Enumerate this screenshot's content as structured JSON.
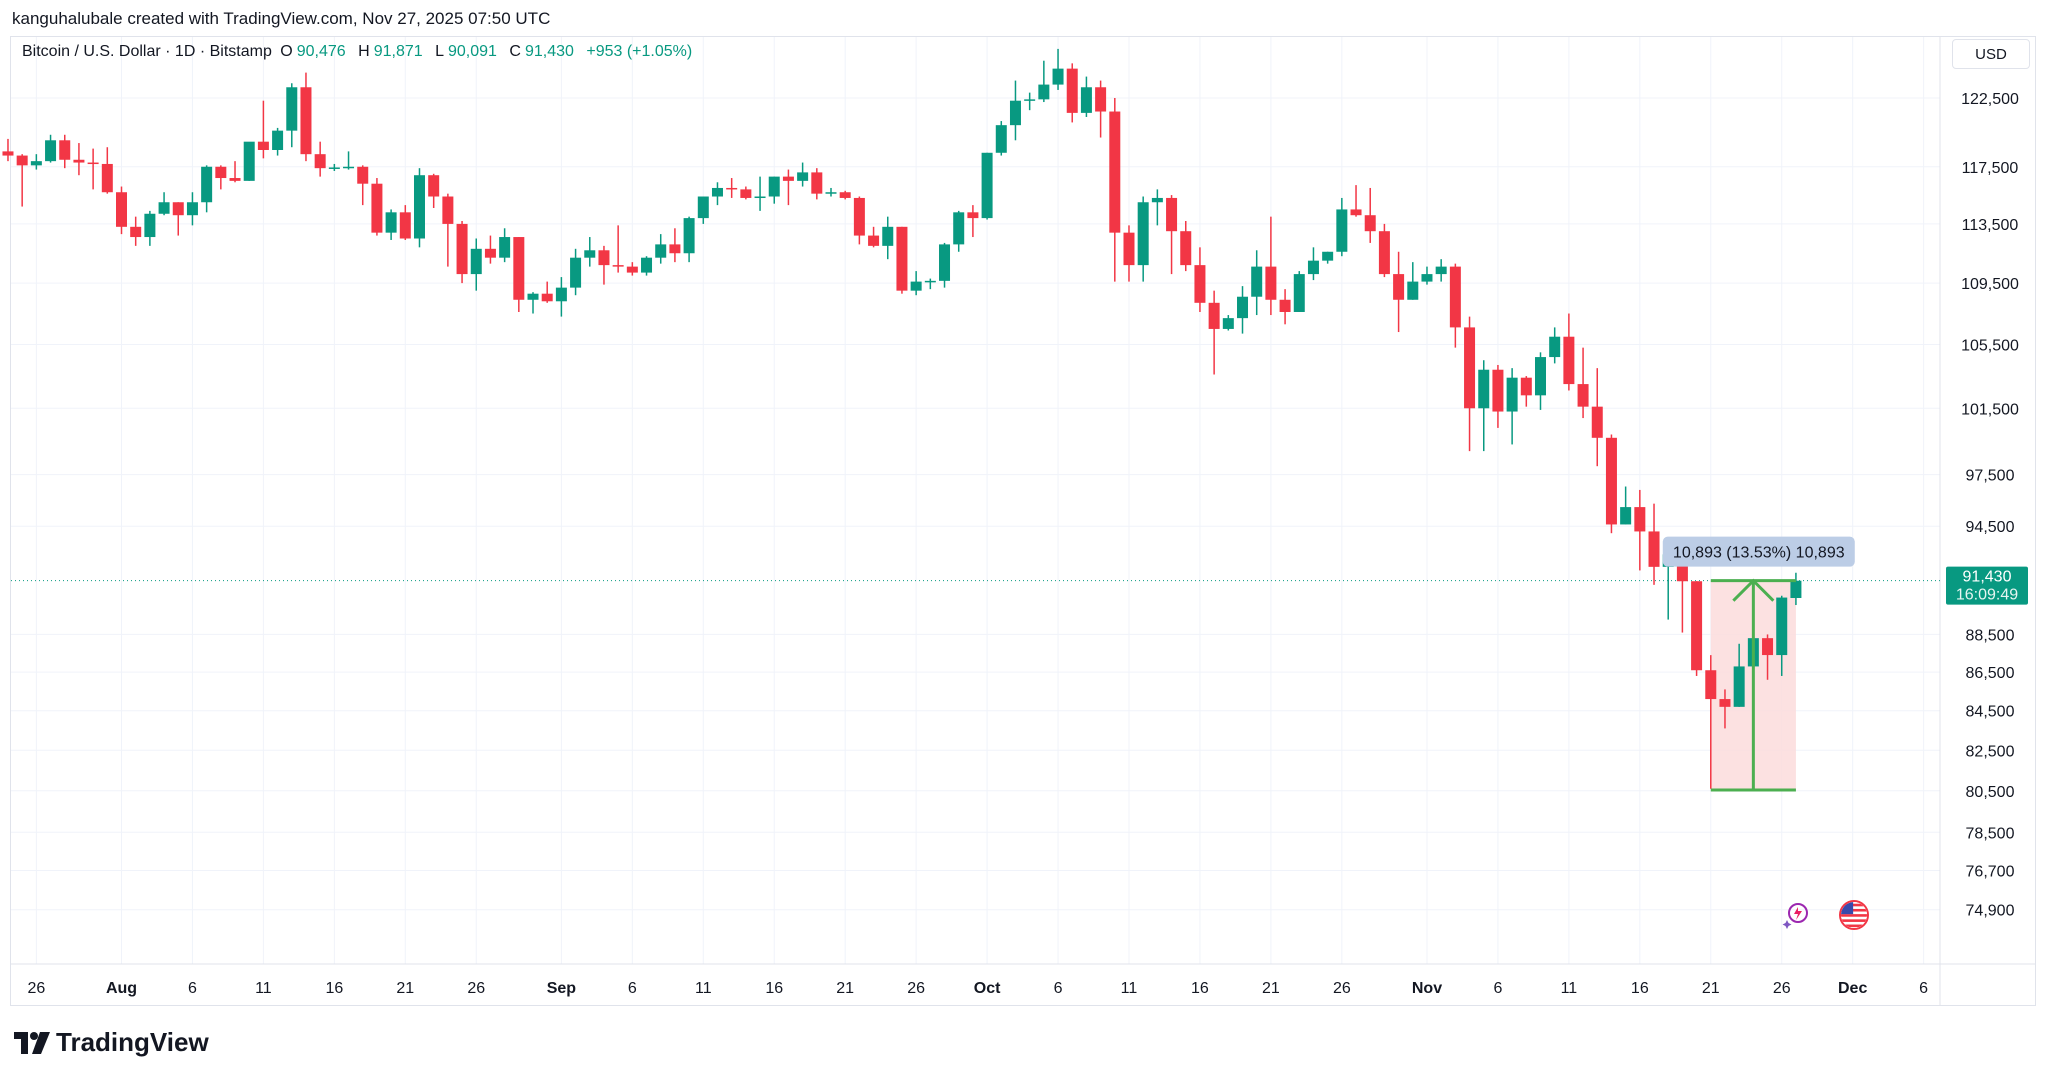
{
  "attribution": "kanguhalubale created with TradingView.com, Nov 27, 2025 07:50 UTC",
  "legend": {
    "symbol": "Bitcoin / U.S. Dollar · 1D · Bitstamp",
    "o_label": "O",
    "o": "90,476",
    "h_label": "H",
    "h": "91,871",
    "l_label": "L",
    "l": "90,091",
    "c_label": "C",
    "c": "91,430",
    "change": "+953 (+1.05%)"
  },
  "currency": "USD",
  "logo": "TradingView",
  "icons": {
    "assistant": "sparkle-icon",
    "region": "us-flag-icon"
  },
  "colors": {
    "up": "#089981",
    "down": "#f23645",
    "measure_fill": "#fbdcdc",
    "measure_line": "#4caf50",
    "measure_label_bg": "#bccde6"
  },
  "chart_data": {
    "type": "candlestick",
    "title": "Bitcoin / U.S. Dollar · 1D · Bitstamp",
    "y_scale": "log",
    "ylim": [
      73800,
      127500
    ],
    "grid": true,
    "price_ticks": [
      "122,500",
      "117,500",
      "113,500",
      "109,500",
      "105,500",
      "101,500",
      "97,500",
      "94,500",
      "88,500",
      "86,500",
      "84,500",
      "82,500",
      "80,500",
      "78,500",
      "76,700",
      "74,900"
    ],
    "time_ticks": [
      {
        "label": "26",
        "date": "2025-07-26",
        "bold": false
      },
      {
        "label": "Aug",
        "date": "2025-08-01",
        "bold": true
      },
      {
        "label": "6",
        "date": "2025-08-06",
        "bold": false
      },
      {
        "label": "11",
        "date": "2025-08-11",
        "bold": false
      },
      {
        "label": "16",
        "date": "2025-08-16",
        "bold": false
      },
      {
        "label": "21",
        "date": "2025-08-21",
        "bold": false
      },
      {
        "label": "26",
        "date": "2025-08-26",
        "bold": false
      },
      {
        "label": "Sep",
        "date": "2025-09-01",
        "bold": true
      },
      {
        "label": "6",
        "date": "2025-09-06",
        "bold": false
      },
      {
        "label": "11",
        "date": "2025-09-11",
        "bold": false
      },
      {
        "label": "16",
        "date": "2025-09-16",
        "bold": false
      },
      {
        "label": "21",
        "date": "2025-09-21",
        "bold": false
      },
      {
        "label": "26",
        "date": "2025-09-26",
        "bold": false
      },
      {
        "label": "Oct",
        "date": "2025-10-01",
        "bold": true
      },
      {
        "label": "6",
        "date": "2025-10-06",
        "bold": false
      },
      {
        "label": "11",
        "date": "2025-10-11",
        "bold": false
      },
      {
        "label": "16",
        "date": "2025-10-16",
        "bold": false
      },
      {
        "label": "21",
        "date": "2025-10-21",
        "bold": false
      },
      {
        "label": "26",
        "date": "2025-10-26",
        "bold": false
      },
      {
        "label": "Nov",
        "date": "2025-11-01",
        "bold": true
      },
      {
        "label": "6",
        "date": "2025-11-06",
        "bold": false
      },
      {
        "label": "11",
        "date": "2025-11-11",
        "bold": false
      },
      {
        "label": "16",
        "date": "2025-11-16",
        "bold": false
      },
      {
        "label": "21",
        "date": "2025-11-21",
        "bold": false
      },
      {
        "label": "26",
        "date": "2025-11-26",
        "bold": false
      },
      {
        "label": "Dec",
        "date": "2025-12-01",
        "bold": true
      },
      {
        "label": "6",
        "date": "2025-12-06",
        "bold": false
      }
    ],
    "candles_format": [
      "date",
      "open",
      "high",
      "low",
      "close"
    ],
    "candles": [
      [
        "2025-07-24",
        118600,
        119500,
        117900,
        118300
      ],
      [
        "2025-07-25",
        118300,
        118400,
        114700,
        117600
      ],
      [
        "2025-07-26",
        117600,
        118400,
        117300,
        117900
      ],
      [
        "2025-07-27",
        117900,
        119800,
        117800,
        119400
      ],
      [
        "2025-07-28",
        119400,
        119800,
        117400,
        118000
      ],
      [
        "2025-07-29",
        118000,
        119200,
        116900,
        117800
      ],
      [
        "2025-07-30",
        117800,
        118800,
        115900,
        117700
      ],
      [
        "2025-07-31",
        117700,
        118900,
        115600,
        115700
      ],
      [
        "2025-08-01",
        115700,
        116100,
        112800,
        113300
      ],
      [
        "2025-08-02",
        113300,
        114000,
        112000,
        112600
      ],
      [
        "2025-08-03",
        112600,
        114400,
        112000,
        114200
      ],
      [
        "2025-08-04",
        114200,
        115700,
        114100,
        115000
      ],
      [
        "2025-08-05",
        115000,
        115000,
        112700,
        114100
      ],
      [
        "2025-08-06",
        114100,
        115700,
        113400,
        115000
      ],
      [
        "2025-08-07",
        115000,
        117600,
        114300,
        117500
      ],
      [
        "2025-08-08",
        117500,
        117600,
        115900,
        116700
      ],
      [
        "2025-08-09",
        116700,
        117900,
        116400,
        116500
      ],
      [
        "2025-08-10",
        116500,
        119200,
        116500,
        119300
      ],
      [
        "2025-08-11",
        119300,
        122300,
        118100,
        118700
      ],
      [
        "2025-08-12",
        118700,
        120300,
        118300,
        120100
      ],
      [
        "2025-08-13",
        120100,
        123600,
        118900,
        123300
      ],
      [
        "2025-08-14",
        123300,
        124400,
        117900,
        118400
      ],
      [
        "2025-08-15",
        118400,
        119300,
        116800,
        117400
      ],
      [
        "2025-08-16",
        117400,
        117700,
        117200,
        117450
      ],
      [
        "2025-08-17",
        117450,
        118600,
        117300,
        117500
      ],
      [
        "2025-08-18",
        117500,
        117600,
        114800,
        116300
      ],
      [
        "2025-08-19",
        116300,
        116700,
        112700,
        112900
      ],
      [
        "2025-08-20",
        112900,
        114500,
        112400,
        114300
      ],
      [
        "2025-08-21",
        114300,
        114800,
        112400,
        112500
      ],
      [
        "2025-08-22",
        112500,
        117400,
        111900,
        116900
      ],
      [
        "2025-08-23",
        116900,
        117000,
        114600,
        115400
      ],
      [
        "2025-08-24",
        115400,
        115600,
        110600,
        113500
      ],
      [
        "2025-08-25",
        113500,
        113700,
        109500,
        110100
      ],
      [
        "2025-08-26",
        110100,
        112500,
        109000,
        111800
      ],
      [
        "2025-08-27",
        111800,
        112700,
        110800,
        111200
      ],
      [
        "2025-08-28",
        111200,
        113200,
        110900,
        112600
      ],
      [
        "2025-08-29",
        112600,
        112600,
        107600,
        108400
      ],
      [
        "2025-08-30",
        108400,
        108900,
        107500,
        108800
      ],
      [
        "2025-08-31",
        108800,
        109600,
        108200,
        108300
      ],
      [
        "2025-09-01",
        108300,
        109900,
        107300,
        109200
      ],
      [
        "2025-09-02",
        109200,
        111800,
        108700,
        111200
      ],
      [
        "2025-09-03",
        111200,
        112600,
        110600,
        111700
      ],
      [
        "2025-09-04",
        111700,
        112000,
        109400,
        110700
      ],
      [
        "2025-09-05",
        110700,
        113400,
        110200,
        110600
      ],
      [
        "2025-09-06",
        110600,
        110900,
        110000,
        110200
      ],
      [
        "2025-09-07",
        110200,
        111300,
        110000,
        111200
      ],
      [
        "2025-09-08",
        111200,
        112800,
        110800,
        112100
      ],
      [
        "2025-09-09",
        112100,
        113200,
        110900,
        111500
      ],
      [
        "2025-09-10",
        111500,
        114000,
        110900,
        113900
      ],
      [
        "2025-09-11",
        113900,
        115400,
        113500,
        115400
      ],
      [
        "2025-09-12",
        115400,
        116400,
        114800,
        116000
      ],
      [
        "2025-09-13",
        116000,
        116700,
        115300,
        115900
      ],
      [
        "2025-09-14",
        115900,
        116100,
        115200,
        115300
      ],
      [
        "2025-09-15",
        115300,
        116800,
        114400,
        115400
      ],
      [
        "2025-09-16",
        115400,
        116800,
        114900,
        116800
      ],
      [
        "2025-09-17",
        116800,
        117300,
        114800,
        116500
      ],
      [
        "2025-09-18",
        116500,
        117800,
        116100,
        117100
      ],
      [
        "2025-09-19",
        117100,
        117400,
        115200,
        115600
      ],
      [
        "2025-09-20",
        115600,
        116000,
        115400,
        115700
      ],
      [
        "2025-09-21",
        115700,
        115800,
        115200,
        115300
      ],
      [
        "2025-09-22",
        115300,
        115400,
        112100,
        112700
      ],
      [
        "2025-09-23",
        112700,
        113300,
        111900,
        112000
      ],
      [
        "2025-09-24",
        112000,
        114000,
        111100,
        113300
      ],
      [
        "2025-09-25",
        113300,
        113300,
        108800,
        109000
      ],
      [
        "2025-09-26",
        109000,
        110300,
        108700,
        109600
      ],
      [
        "2025-09-27",
        109600,
        109800,
        109100,
        109650
      ],
      [
        "2025-09-28",
        109650,
        112200,
        109200,
        112100
      ],
      [
        "2025-09-29",
        112100,
        114400,
        111600,
        114300
      ],
      [
        "2025-09-30",
        114300,
        114800,
        112600,
        113900
      ],
      [
        "2025-10-01",
        113900,
        118500,
        113800,
        118500
      ],
      [
        "2025-10-02",
        118500,
        120800,
        118300,
        120500
      ],
      [
        "2025-10-03",
        120500,
        123800,
        119400,
        122300
      ],
      [
        "2025-10-04",
        122300,
        122900,
        121600,
        122400
      ],
      [
        "2025-10-05",
        122400,
        125300,
        122200,
        123500
      ],
      [
        "2025-10-06",
        123500,
        126200,
        123100,
        124700
      ],
      [
        "2025-10-07",
        124700,
        125100,
        120700,
        121400
      ],
      [
        "2025-10-08",
        121400,
        124100,
        121100,
        123300
      ],
      [
        "2025-10-09",
        123300,
        123800,
        119600,
        121500
      ],
      [
        "2025-10-10",
        121500,
        122500,
        109600,
        112900
      ],
      [
        "2025-10-11",
        112900,
        113400,
        109600,
        110700
      ],
      [
        "2025-10-12",
        110700,
        115400,
        109600,
        115000
      ],
      [
        "2025-10-13",
        115000,
        115900,
        113400,
        115300
      ],
      [
        "2025-10-14",
        115300,
        115500,
        110100,
        113000
      ],
      [
        "2025-10-15",
        113000,
        113700,
        110300,
        110700
      ],
      [
        "2025-10-16",
        110700,
        111900,
        107600,
        108200
      ],
      [
        "2025-10-17",
        108200,
        109000,
        103600,
        106500
      ],
      [
        "2025-10-18",
        106500,
        107400,
        106400,
        107200
      ],
      [
        "2025-10-19",
        107200,
        109300,
        106200,
        108600
      ],
      [
        "2025-10-20",
        108600,
        111700,
        107400,
        110600
      ],
      [
        "2025-10-21",
        110600,
        114000,
        107400,
        108400
      ],
      [
        "2025-10-22",
        108400,
        109100,
        106800,
        107600
      ],
      [
        "2025-10-23",
        107600,
        110300,
        107600,
        110100
      ],
      [
        "2025-10-24",
        110100,
        111900,
        109700,
        111000
      ],
      [
        "2025-10-25",
        111000,
        111600,
        110800,
        111600
      ],
      [
        "2025-10-26",
        111600,
        115300,
        111300,
        114500
      ],
      [
        "2025-10-27",
        114500,
        116200,
        114000,
        114100
      ],
      [
        "2025-10-28",
        114100,
        116000,
        112200,
        113000
      ],
      [
        "2025-10-29",
        113000,
        113500,
        109900,
        110100
      ],
      [
        "2025-10-30",
        110100,
        111600,
        106300,
        108400
      ],
      [
        "2025-10-31",
        108400,
        110900,
        108400,
        109600
      ],
      [
        "2025-11-01",
        109600,
        110600,
        109400,
        110100
      ],
      [
        "2025-11-02",
        110100,
        111100,
        109600,
        110600
      ],
      [
        "2025-11-03",
        110600,
        110800,
        105300,
        106600
      ],
      [
        "2025-11-04",
        106600,
        107300,
        98900,
        101500
      ],
      [
        "2025-11-05",
        101500,
        104500,
        98900,
        103900
      ],
      [
        "2025-11-06",
        103900,
        104200,
        100300,
        101300
      ],
      [
        "2025-11-07",
        101300,
        104000,
        99300,
        103400
      ],
      [
        "2025-11-08",
        103400,
        103500,
        101600,
        102300
      ],
      [
        "2025-11-09",
        102300,
        105000,
        101400,
        104700
      ],
      [
        "2025-11-10",
        104700,
        106600,
        104300,
        106000
      ],
      [
        "2025-11-11",
        106000,
        107500,
        102600,
        103000
      ],
      [
        "2025-11-12",
        103000,
        105300,
        100900,
        101600
      ],
      [
        "2025-11-13",
        101600,
        104000,
        98000,
        99700
      ],
      [
        "2025-11-14",
        99700,
        99900,
        94100,
        94600
      ],
      [
        "2025-11-15",
        94600,
        96800,
        94600,
        95600
      ],
      [
        "2025-11-16",
        95600,
        96600,
        92000,
        94200
      ],
      [
        "2025-11-17",
        94200,
        95800,
        91200,
        92200
      ],
      [
        "2025-11-18",
        92200,
        93800,
        89300,
        92900
      ],
      [
        "2025-11-19",
        92900,
        92900,
        88600,
        91400
      ],
      [
        "2025-11-20",
        91400,
        91400,
        86300,
        86600
      ],
      [
        "2025-11-21",
        86600,
        87400,
        80600,
        85100
      ],
      [
        "2025-11-22",
        85100,
        85600,
        83600,
        84700
      ],
      [
        "2025-11-23",
        84700,
        88000,
        84700,
        86800
      ],
      [
        "2025-11-24",
        86800,
        89200,
        85300,
        88300
      ],
      [
        "2025-11-25",
        88300,
        88500,
        86100,
        87400
      ],
      [
        "2025-11-26",
        87400,
        90600,
        86300,
        90500
      ],
      [
        "2025-11-27",
        90476,
        91871,
        90091,
        91430
      ]
    ],
    "last_price": {
      "value": 91430,
      "label": "91,430",
      "countdown": "16:09:49"
    },
    "measure": {
      "start_date": "2025-11-21",
      "end_date": "2025-11-27",
      "from_price": 80537,
      "to_price": 91430,
      "label": "10,893 (13.53%) 10,893"
    }
  }
}
